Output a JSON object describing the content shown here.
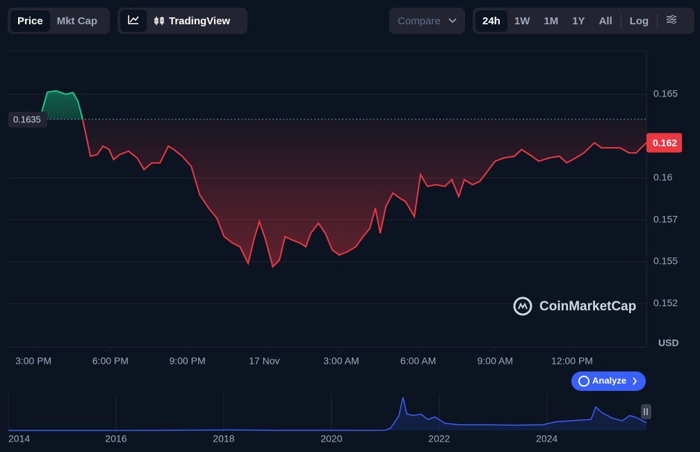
{
  "toolbar": {
    "metric_tabs": [
      "Price",
      "Mkt Cap"
    ],
    "chart_tool": "TradingView",
    "compare": "Compare",
    "ranges": [
      "24h",
      "1W",
      "1M",
      "1Y",
      "All"
    ],
    "log": "Log"
  },
  "chart_data": [
    {
      "type": "line",
      "unit": "USD",
      "x": [
        0.33,
        0.54,
        0.87,
        1.27,
        1.54,
        1.73,
        1.9,
        2.03,
        2.22,
        2.49,
        2.71,
        2.95,
        3.12,
        3.36,
        3.71,
        4.04,
        4.31,
        4.61,
        4.93,
        5.26,
        5.47,
        5.8,
        6.15,
        6.48,
        6.83,
        7.15,
        7.43,
        7.78,
        8.05,
        8.37,
        8.59,
        8.81,
        9.05,
        9.33,
        9.59,
        9.81,
        10.08,
        10.41,
        10.62,
        10.81,
        11.11,
        11.38,
        11.65,
        11.92,
        12.25,
        12.57,
        12.85,
        13.12,
        13.33,
        13.52,
        13.74,
        14.01,
        14.28,
        14.5,
        14.85,
        15.09,
        15.36,
        15.69,
        16.04,
        16.31,
        16.58,
        16.8,
        17.12,
        17.4,
        17.75,
        18.0,
        18.35,
        18.75,
        19.03,
        19.43,
        19.7,
        20.11,
        20.51,
        20.79,
        21.14,
        21.46,
        21.87,
        22.14,
        22.49,
        22.87,
        23.22,
        23.5,
        23.69,
        23.9
      ],
      "values": [
        0.16397,
        0.16512,
        0.1652,
        0.165,
        0.1651,
        0.1646,
        0.1636,
        0.1627,
        0.1613,
        0.1614,
        0.1619,
        0.1617,
        0.1611,
        0.1614,
        0.1616,
        0.1612,
        0.1605,
        0.1609,
        0.1609,
        0.1619,
        0.1617,
        0.1613,
        0.1607,
        0.159,
        0.1582,
        0.1576,
        0.1565,
        0.1561,
        0.1559,
        0.1549,
        0.1563,
        0.1574,
        0.1563,
        0.1547,
        0.1551,
        0.1565,
        0.1563,
        0.1561,
        0.1559,
        0.1567,
        0.1573,
        0.1567,
        0.1557,
        0.1554,
        0.1556,
        0.1559,
        0.1565,
        0.157,
        0.1582,
        0.1567,
        0.1583,
        0.1591,
        0.1588,
        0.1586,
        0.1577,
        0.1602,
        0.1595,
        0.1596,
        0.1595,
        0.1599,
        0.1589,
        0.1599,
        0.1596,
        0.1598,
        0.1605,
        0.161,
        0.1612,
        0.1613,
        0.1617,
        0.1613,
        0.161,
        0.1612,
        0.1613,
        0.1609,
        0.1612,
        0.1615,
        0.1621,
        0.1618,
        0.1618,
        0.1618,
        0.1615,
        0.1615,
        0.1618,
        0.1621
      ],
      "xlim": [
        -0.98,
        23.9
      ],
      "ylim": [
        0.1499,
        0.1676
      ],
      "xticks": [
        {
          "value": 0,
          "label": "3:00 PM"
        },
        {
          "value": 3,
          "label": "6:00 PM"
        },
        {
          "value": 6,
          "label": "9:00 PM"
        },
        {
          "value": 9,
          "label": "17 Nov"
        },
        {
          "value": 12,
          "label": "3:00 AM"
        },
        {
          "value": 15,
          "label": "6:00 AM"
        },
        {
          "value": 18,
          "label": "9:00 AM"
        },
        {
          "value": 21,
          "label": "12:00 PM"
        }
      ],
      "yticks": [
        0.165,
        0.16,
        {
          "value": 0.1575,
          "label": "0.157"
        },
        0.155,
        {
          "value": 0.1525,
          "label": "0.152"
        }
      ],
      "reference_value": 0.1635,
      "current_price": {
        "value": 0.1621,
        "label": "0.162"
      },
      "up_color": "#16c784",
      "down_color": "#ea3943",
      "grid": true
    },
    {
      "type": "line",
      "x": [
        2014.0,
        2016.0,
        2017.95,
        2018.1,
        2019.0,
        2020.0,
        2021.0,
        2021.1,
        2021.25,
        2021.33,
        2021.4,
        2021.53,
        2021.66,
        2021.79,
        2021.92,
        2022.11,
        2022.37,
        2022.89,
        2023.4,
        2023.92,
        2024.17,
        2024.56,
        2024.82,
        2024.91,
        2025.01,
        2025.21,
        2025.4,
        2025.54,
        2025.68,
        2025.85
      ],
      "values": [
        0.0005,
        0.0003,
        0.008,
        0.01,
        0.003,
        0.003,
        0.006,
        0.05,
        0.3,
        0.69,
        0.34,
        0.31,
        0.34,
        0.23,
        0.28,
        0.15,
        0.12,
        0.12,
        0.11,
        0.12,
        0.18,
        0.21,
        0.23,
        0.49,
        0.38,
        0.26,
        0.2,
        0.31,
        0.26,
        0.16
      ],
      "xlim": [
        2014.0,
        2025.85
      ],
      "ylim": [
        0,
        0.75
      ],
      "xticks": [
        2014,
        2016,
        2018,
        2020,
        2022,
        2024
      ],
      "color": "#3861fb"
    }
  ],
  "watermark": "CoinMarketCap",
  "analyze_button": "Analyze"
}
